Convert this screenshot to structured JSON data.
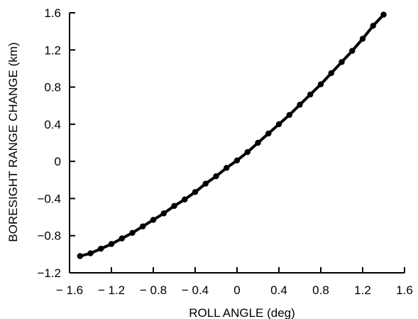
{
  "chart_data": {
    "type": "line",
    "title": "",
    "xlabel": "ROLL ANGLE (deg)",
    "ylabel": "BORESIGHT RANGE CHANGE (km)",
    "xlim": [
      -1.6,
      1.6
    ],
    "ylim": [
      -1.2,
      1.6
    ],
    "grid": false,
    "x_ticks": [
      "− 1.6",
      "− 1.2",
      "− 0.8",
      "− 0.4",
      "0",
      "0.4",
      "0.8",
      "1.2",
      "1.6"
    ],
    "x_tick_values": [
      -1.6,
      -1.2,
      -0.8,
      -0.4,
      0,
      0.4,
      0.8,
      1.2,
      1.6
    ],
    "y_ticks": [
      "1.6",
      "1.2",
      "0.8",
      "0.4",
      "0",
      "−0.4",
      "−0.8",
      "−1.2"
    ],
    "y_tick_values": [
      1.6,
      1.2,
      0.8,
      0.4,
      0,
      -0.4,
      -0.8,
      -1.2
    ],
    "series": [
      {
        "x": [
          -1.5,
          -1.4,
          -1.3,
          -1.2,
          -1.1,
          -1.0,
          -0.9,
          -0.8,
          -0.7,
          -0.6,
          -0.5,
          -0.4,
          -0.3,
          -0.2,
          -0.1,
          0.0,
          0.1,
          0.2,
          0.3,
          0.4,
          0.5,
          0.6,
          0.7,
          0.8,
          0.9,
          1.0,
          1.1,
          1.2,
          1.3,
          1.4
        ],
        "y": [
          -1.02,
          -0.99,
          -0.94,
          -0.89,
          -0.83,
          -0.77,
          -0.7,
          -0.63,
          -0.56,
          -0.48,
          -0.41,
          -0.33,
          -0.24,
          -0.16,
          -0.07,
          0.01,
          0.1,
          0.2,
          0.3,
          0.4,
          0.5,
          0.61,
          0.72,
          0.83,
          0.95,
          1.07,
          1.19,
          1.32,
          1.46,
          1.58
        ]
      }
    ]
  }
}
